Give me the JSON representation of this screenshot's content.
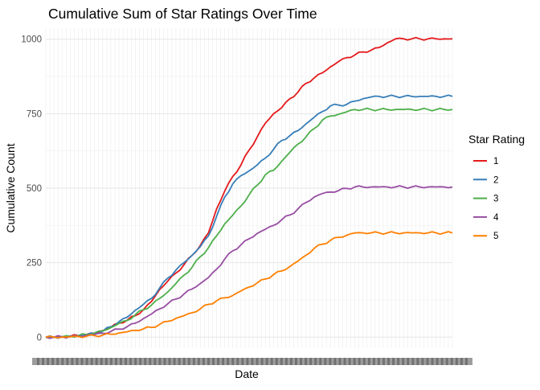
{
  "chart_data": {
    "type": "line",
    "title": "Cumulative Sum of Star Ratings Over Time",
    "xlabel": "Date",
    "ylabel": "Cumulative Count",
    "legend_title": "Star Rating",
    "legend_position": "right",
    "grid": true,
    "x_tick_labels_illegible": true,
    "x": [
      0,
      2,
      4,
      6,
      8,
      10,
      12,
      14,
      16,
      18,
      20,
      22,
      24,
      26,
      28,
      30,
      32,
      34,
      36,
      38,
      40,
      42,
      44,
      46,
      48,
      50,
      52,
      54,
      56,
      58,
      60,
      62,
      64,
      66,
      68,
      70,
      72,
      74,
      76,
      78,
      80,
      82,
      84,
      86,
      88,
      90,
      92,
      94,
      96,
      98,
      100
    ],
    "ylim": [
      -37,
      1037
    ],
    "y_ticks": [
      0,
      250,
      500,
      750,
      1000
    ],
    "series": [
      {
        "name": "1",
        "color": "#e41a1c",
        "values": [
          0,
          0,
          1,
          3,
          5,
          9,
          14,
          22,
          34,
          47,
          57,
          72,
          92,
          120,
          160,
          188,
          215,
          243,
          275,
          308,
          350,
          430,
          490,
          540,
          578,
          628,
          672,
          718,
          750,
          770,
          800,
          822,
          852,
          870,
          887,
          907,
          925,
          938,
          947,
          957,
          963,
          972,
          988,
          1001,
          1001,
          1001,
          1001,
          1001,
          1001,
          1001,
          1001
        ]
      },
      {
        "name": "2",
        "color": "#377eb8",
        "values": [
          0,
          0,
          1,
          3,
          5,
          8,
          13,
          20,
          35,
          52,
          67,
          90,
          110,
          130,
          165,
          198,
          225,
          250,
          275,
          304,
          340,
          405,
          470,
          515,
          542,
          558,
          578,
          601,
          630,
          660,
          676,
          693,
          716,
          738,
          757,
          776,
          779,
          781,
          792,
          800,
          806,
          808,
          808,
          808,
          808,
          808,
          808,
          808,
          808,
          808,
          808
        ]
      },
      {
        "name": "3",
        "color": "#4daf4a",
        "values": [
          0,
          0,
          1,
          3,
          5,
          9,
          14,
          21,
          32,
          46,
          56,
          75,
          92,
          108,
          130,
          152,
          180,
          208,
          235,
          270,
          300,
          340,
          380,
          410,
          440,
          478,
          510,
          545,
          560,
          590,
          620,
          648,
          672,
          700,
          728,
          742,
          748,
          756,
          764,
          764,
          764,
          764,
          764,
          764,
          764,
          764,
          764,
          764,
          764,
          764,
          764
        ]
      },
      {
        "name": "4",
        "color": "#984ea3",
        "values": [
          0,
          0,
          1,
          2,
          3,
          6,
          9,
          13,
          19,
          27,
          35,
          47,
          62,
          78,
          95,
          112,
          128,
          145,
          162,
          180,
          200,
          228,
          262,
          290,
          310,
          330,
          348,
          362,
          375,
          394,
          410,
          430,
          452,
          470,
          482,
          487,
          492,
          499,
          504,
          504,
          504,
          504,
          504,
          504,
          504,
          504,
          504,
          504,
          504,
          504,
          504
        ]
      },
      {
        "name": "5",
        "color": "#ff7f00",
        "values": [
          0,
          0,
          0,
          1,
          2,
          3,
          5,
          7,
          10,
          14,
          18,
          23,
          28,
          33,
          43,
          53,
          63,
          72,
          82,
          95,
          110,
          122,
          132,
          140,
          155,
          168,
          182,
          195,
          210,
          222,
          237,
          255,
          275,
          298,
          312,
          325,
          335,
          342,
          350,
          350,
          350,
          350,
          350,
          350,
          350,
          350,
          350,
          350,
          350,
          350,
          350
        ]
      }
    ]
  }
}
